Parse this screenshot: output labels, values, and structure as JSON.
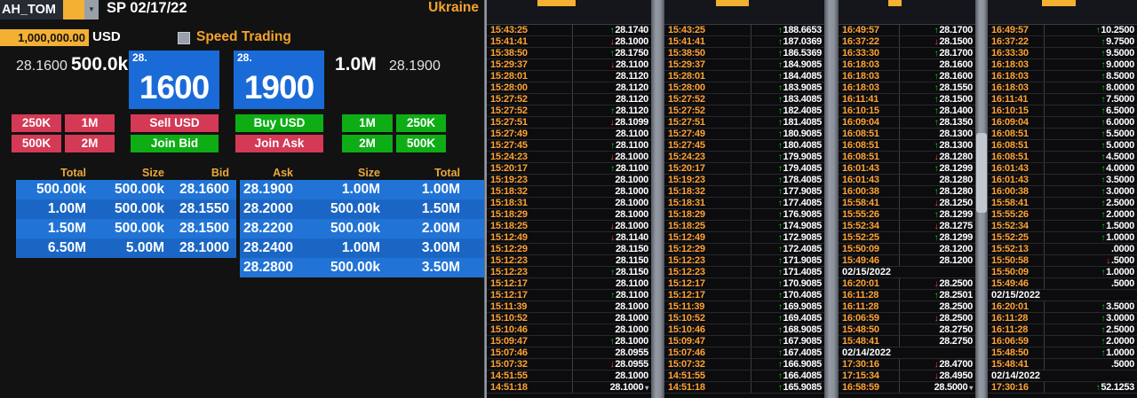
{
  "header": {
    "instrument": "AH_TOM",
    "settle_label": "SP 02/17/22",
    "amount": "1,000,000.00",
    "currency": "USD",
    "speed_trading": "Speed Trading",
    "region": "Ukraine"
  },
  "quote": {
    "bid_price": "28.1600",
    "bid_size": "500.0k",
    "bid_handle": "28.",
    "bid_pips": "1600",
    "ask_handle": "28.",
    "ask_pips": "1900",
    "ask_size": "1.0M",
    "ask_price": "28.1900"
  },
  "buttons": {
    "sell_sizes": [
      "250K",
      "1M",
      "500K",
      "2M"
    ],
    "sell_usd": "Sell USD",
    "join_bid": "Join Bid",
    "buy_usd": "Buy USD",
    "join_ask": "Join Ask",
    "buy_sizes": [
      "1M",
      "250K",
      "2M",
      "500K"
    ]
  },
  "depth": {
    "headers": [
      "Total",
      "Size",
      "Bid",
      "Ask",
      "Size",
      "Total"
    ],
    "bids": [
      {
        "total": "500.00k",
        "size": "500.00k",
        "price": "28.1600"
      },
      {
        "total": "1.00M",
        "size": "500.00k",
        "price": "28.1550"
      },
      {
        "total": "1.50M",
        "size": "500.00k",
        "price": "28.1500"
      },
      {
        "total": "6.50M",
        "size": "5.00M",
        "price": "28.1000"
      }
    ],
    "asks": [
      {
        "price": "28.1900",
        "size": "1.00M",
        "total": "1.00M"
      },
      {
        "price": "28.2000",
        "size": "500.00k",
        "total": "1.50M"
      },
      {
        "price": "28.2200",
        "size": "500.00k",
        "total": "2.00M"
      },
      {
        "price": "28.2400",
        "size": "1.00M",
        "total": "3.00M"
      },
      {
        "price": "28.2800",
        "size": "500.00k",
        "total": "3.50M"
      }
    ]
  },
  "colors": {
    "amber": "#f3b033",
    "time_amber": "#ffa332",
    "blue": "#1a6bd8",
    "red": "#d43a56",
    "green": "#0ead15",
    "up_arrow": "#00d80a",
    "down_arrow": "#ff4b3a"
  },
  "panels": [
    {
      "rows": [
        {
          "t": "15:43:25",
          "d": "up",
          "v": "28.1740"
        },
        {
          "t": "15:41:41",
          "d": "down",
          "v": "28.1000"
        },
        {
          "t": "15:38:50",
          "d": "up",
          "v": "28.1750"
        },
        {
          "t": "15:29:37",
          "d": "down",
          "v": "28.1100"
        },
        {
          "t": "15:28:01",
          "d": "",
          "v": "28.1120"
        },
        {
          "t": "15:28:00",
          "d": "",
          "v": "28.1120"
        },
        {
          "t": "15:27:52",
          "d": "",
          "v": "28.1120"
        },
        {
          "t": "15:27:52",
          "d": "up",
          "v": "28.1120"
        },
        {
          "t": "15:27:51",
          "d": "down",
          "v": "28.1099"
        },
        {
          "t": "15:27:49",
          "d": "",
          "v": "28.1100"
        },
        {
          "t": "15:27:45",
          "d": "up",
          "v": "28.1100"
        },
        {
          "t": "15:24:23",
          "d": "down",
          "v": "28.1000"
        },
        {
          "t": "15:20:17",
          "d": "up",
          "v": "28.1100"
        },
        {
          "t": "15:19:23",
          "d": "",
          "v": "28.1000"
        },
        {
          "t": "15:18:32",
          "d": "",
          "v": "28.1000"
        },
        {
          "t": "15:18:31",
          "d": "",
          "v": "28.1000"
        },
        {
          "t": "15:18:29",
          "d": "",
          "v": "28.1000"
        },
        {
          "t": "15:18:25",
          "d": "down",
          "v": "28.1000"
        },
        {
          "t": "15:12:49",
          "d": "down",
          "v": "28.1140"
        },
        {
          "t": "15:12:29",
          "d": "",
          "v": "28.1150"
        },
        {
          "t": "15:12:23",
          "d": "",
          "v": "28.1150"
        },
        {
          "t": "15:12:23",
          "d": "up",
          "v": "28.1150"
        },
        {
          "t": "15:12:17",
          "d": "",
          "v": "28.1100"
        },
        {
          "t": "15:12:17",
          "d": "up",
          "v": "28.1100"
        },
        {
          "t": "15:11:39",
          "d": "",
          "v": "28.1000"
        },
        {
          "t": "15:10:52",
          "d": "",
          "v": "28.1000"
        },
        {
          "t": "15:10:46",
          "d": "",
          "v": "28.1000"
        },
        {
          "t": "15:09:47",
          "d": "up",
          "v": "28.1000"
        },
        {
          "t": "15:07:46",
          "d": "",
          "v": "28.0955"
        },
        {
          "t": "15:07:32",
          "d": "down",
          "v": "28.0955"
        },
        {
          "t": "14:51:55",
          "d": "",
          "v": "28.1000"
        },
        {
          "t": "14:51:18",
          "d": "",
          "v": "28.1000",
          "m": true
        }
      ]
    },
    {
      "rows": [
        {
          "t": "15:43:25",
          "d": "up",
          "v": "188.6653"
        },
        {
          "t": "15:41:41",
          "d": "up",
          "v": "187.0369"
        },
        {
          "t": "15:38:50",
          "d": "up",
          "v": "186.5369"
        },
        {
          "t": "15:29:37",
          "d": "up",
          "v": "184.9085"
        },
        {
          "t": "15:28:01",
          "d": "up",
          "v": "184.4085"
        },
        {
          "t": "15:28:00",
          "d": "up",
          "v": "183.9085"
        },
        {
          "t": "15:27:52",
          "d": "up",
          "v": "183.4085"
        },
        {
          "t": "15:27:52",
          "d": "up",
          "v": "182.4085"
        },
        {
          "t": "15:27:51",
          "d": "up",
          "v": "181.4085"
        },
        {
          "t": "15:27:49",
          "d": "up",
          "v": "180.9085"
        },
        {
          "t": "15:27:45",
          "d": "up",
          "v": "180.4085"
        },
        {
          "t": "15:24:23",
          "d": "up",
          "v": "179.9085"
        },
        {
          "t": "15:20:17",
          "d": "up",
          "v": "179.4085"
        },
        {
          "t": "15:19:23",
          "d": "up",
          "v": "178.4085"
        },
        {
          "t": "15:18:32",
          "d": "up",
          "v": "177.9085"
        },
        {
          "t": "15:18:31",
          "d": "up",
          "v": "177.4085"
        },
        {
          "t": "15:18:29",
          "d": "up",
          "v": "176.9085"
        },
        {
          "t": "15:18:25",
          "d": "up",
          "v": "174.9085"
        },
        {
          "t": "15:12:49",
          "d": "up",
          "v": "172.9085"
        },
        {
          "t": "15:12:29",
          "d": "up",
          "v": "172.4085"
        },
        {
          "t": "15:12:23",
          "d": "up",
          "v": "171.9085"
        },
        {
          "t": "15:12:23",
          "d": "up",
          "v": "171.4085"
        },
        {
          "t": "15:12:17",
          "d": "up",
          "v": "170.9085"
        },
        {
          "t": "15:12:17",
          "d": "up",
          "v": "170.4085"
        },
        {
          "t": "15:11:39",
          "d": "up",
          "v": "169.9085"
        },
        {
          "t": "15:10:52",
          "d": "up",
          "v": "169.4085"
        },
        {
          "t": "15:10:46",
          "d": "up",
          "v": "168.9085"
        },
        {
          "t": "15:09:47",
          "d": "up",
          "v": "167.9085"
        },
        {
          "t": "15:07:46",
          "d": "up",
          "v": "167.4085"
        },
        {
          "t": "15:07:32",
          "d": "up",
          "v": "166.9085"
        },
        {
          "t": "14:51:55",
          "d": "up",
          "v": "166.4085"
        },
        {
          "t": "14:51:18",
          "d": "up",
          "v": "165.9085"
        }
      ]
    },
    {
      "rows": [
        {
          "t": "16:49:57",
          "d": "up",
          "v": "28.1700"
        },
        {
          "t": "16:37:22",
          "d": "down",
          "v": "28.1500"
        },
        {
          "t": "16:33:30",
          "d": "up",
          "v": "28.1700"
        },
        {
          "t": "16:18:03",
          "d": "",
          "v": "28.1600"
        },
        {
          "t": "16:18:03",
          "d": "up",
          "v": "28.1600"
        },
        {
          "t": "16:18:03",
          "d": "up",
          "v": "28.1550"
        },
        {
          "t": "16:11:41",
          "d": "up",
          "v": "28.1500"
        },
        {
          "t": "16:10:15",
          "d": "up",
          "v": "28.1400"
        },
        {
          "t": "16:09:04",
          "d": "up",
          "v": "28.1350"
        },
        {
          "t": "16:08:51",
          "d": "",
          "v": "28.1300"
        },
        {
          "t": "16:08:51",
          "d": "up",
          "v": "28.1300"
        },
        {
          "t": "16:08:51",
          "d": "down",
          "v": "28.1280"
        },
        {
          "t": "16:01:43",
          "d": "up",
          "v": "28.1299"
        },
        {
          "t": "16:01:43",
          "d": "",
          "v": "28.1280"
        },
        {
          "t": "16:00:38",
          "d": "up",
          "v": "28.1280"
        },
        {
          "t": "15:58:41",
          "d": "down",
          "v": "28.1250"
        },
        {
          "t": "15:55:26",
          "d": "up",
          "v": "28.1299"
        },
        {
          "t": "15:52:34",
          "d": "down",
          "v": "28.1275"
        },
        {
          "t": "15:52:25",
          "d": "up",
          "v": "28.1299"
        },
        {
          "t": "15:50:09",
          "d": "",
          "v": "28.1200"
        },
        {
          "t": "15:49:46",
          "d": "",
          "v": "28.1200"
        },
        {
          "date": "02/15/2022"
        },
        {
          "t": "16:20:01",
          "d": "down",
          "v": "28.2500"
        },
        {
          "t": "16:11:28",
          "d": "up",
          "v": "28.2501"
        },
        {
          "t": "16:11:28",
          "d": "",
          "v": "28.2500"
        },
        {
          "t": "16:06:59",
          "d": "down",
          "v": "28.2500"
        },
        {
          "t": "15:48:50",
          "d": "",
          "v": "28.2750"
        },
        {
          "t": "15:48:41",
          "d": "",
          "v": "28.2750"
        },
        {
          "date": "02/14/2022"
        },
        {
          "t": "17:30:16",
          "d": "down",
          "v": "28.4700"
        },
        {
          "t": "17:15:34",
          "d": "down",
          "v": "28.4950"
        },
        {
          "t": "16:58:59",
          "d": "",
          "v": "28.5000",
          "m": true
        }
      ]
    },
    {
      "rows": [
        {
          "t": "16:49:57",
          "d": "up",
          "v": "10.2500"
        },
        {
          "t": "16:37:22",
          "d": "up",
          "v": "9.7500"
        },
        {
          "t": "16:33:30",
          "d": "up",
          "v": "9.5000"
        },
        {
          "t": "16:18:03",
          "d": "up",
          "v": "9.0000"
        },
        {
          "t": "16:18:03",
          "d": "up",
          "v": "8.5000"
        },
        {
          "t": "16:18:03",
          "d": "up",
          "v": "8.0000"
        },
        {
          "t": "16:11:41",
          "d": "up",
          "v": "7.5000"
        },
        {
          "t": "16:10:15",
          "d": "up",
          "v": "6.5000"
        },
        {
          "t": "16:09:04",
          "d": "up",
          "v": "6.0000"
        },
        {
          "t": "16:08:51",
          "d": "up",
          "v": "5.5000"
        },
        {
          "t": "16:08:51",
          "d": "up",
          "v": "5.0000"
        },
        {
          "t": "16:08:51",
          "d": "up",
          "v": "4.5000"
        },
        {
          "t": "16:01:43",
          "d": "up",
          "v": "4.0000"
        },
        {
          "t": "16:01:43",
          "d": "up",
          "v": "3.5000"
        },
        {
          "t": "16:00:38",
          "d": "up",
          "v": "3.0000"
        },
        {
          "t": "15:58:41",
          "d": "up",
          "v": "2.5000"
        },
        {
          "t": "15:55:26",
          "d": "up",
          "v": "2.0000"
        },
        {
          "t": "15:52:34",
          "d": "up",
          "v": "1.5000"
        },
        {
          "t": "15:52:25",
          "d": "up",
          "v": "1.0000"
        },
        {
          "t": "15:52:13",
          "d": "",
          "v": ".0000"
        },
        {
          "t": "15:50:58",
          "d": "down",
          "v": ".5000"
        },
        {
          "t": "15:50:09",
          "d": "up",
          "v": "1.0000"
        },
        {
          "t": "15:49:46",
          "d": "",
          "v": ".5000"
        },
        {
          "date": "02/15/2022"
        },
        {
          "t": "16:20:01",
          "d": "up",
          "v": "3.5000"
        },
        {
          "t": "16:11:28",
          "d": "up",
          "v": "3.0000"
        },
        {
          "t": "16:11:28",
          "d": "up",
          "v": "2.5000"
        },
        {
          "t": "16:06:59",
          "d": "up",
          "v": "2.0000"
        },
        {
          "t": "15:48:50",
          "d": "up",
          "v": "1.0000"
        },
        {
          "t": "15:48:41",
          "d": "",
          "v": ".5000"
        },
        {
          "date": "02/14/2022"
        },
        {
          "t": "17:30:16",
          "d": "up",
          "v": "52.1253"
        }
      ]
    }
  ]
}
